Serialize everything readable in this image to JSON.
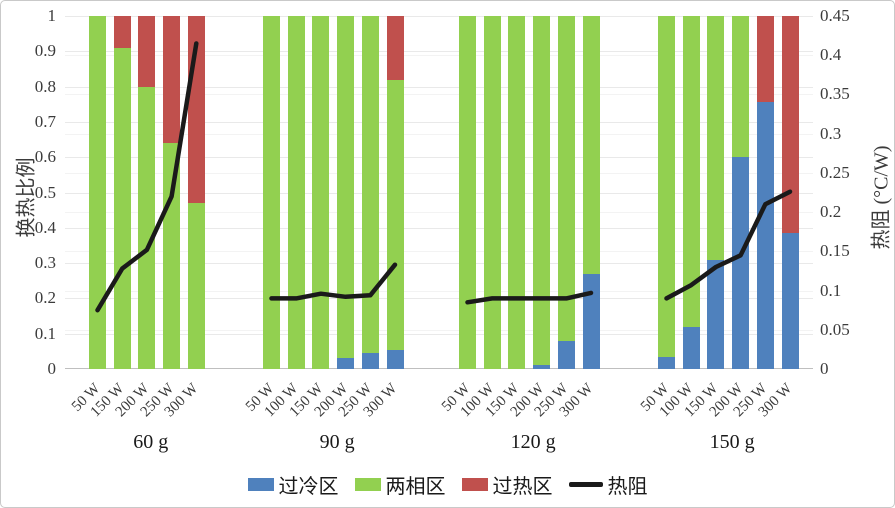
{
  "chart_data": {
    "type": "bar",
    "subtype": "stacked-bar-with-line",
    "title": "",
    "ylabel_left": "换热比例",
    "ylabel_right": "热阻 (°C/W)",
    "ylim_left": [
      0,
      1
    ],
    "ylim_right": [
      0,
      0.45
    ],
    "yticks_left": [
      "0",
      "0.1",
      "0.2",
      "0.3",
      "0.4",
      "0.5",
      "0.6",
      "0.7",
      "0.8",
      "0.9",
      "1"
    ],
    "yticks_right": [
      "0",
      "0.05",
      "0.1",
      "0.15",
      "0.2",
      "0.25",
      "0.3",
      "0.35",
      "0.4",
      "0.45"
    ],
    "grid": true,
    "legend_position": "bottom",
    "colors": {
      "subcooled": "#4f81bd",
      "two_phase": "#92d050",
      "superheat": "#c0504d",
      "line": "#1a1a1a"
    },
    "legend": [
      {
        "label": "过冷区",
        "color": "#4f81bd",
        "marker": "box"
      },
      {
        "label": "两相区",
        "color": "#92d050",
        "marker": "box"
      },
      {
        "label": "过热区",
        "color": "#c0504d",
        "marker": "box"
      },
      {
        "label": "热阻",
        "color": "#1a1a1a",
        "marker": "line"
      }
    ],
    "stack_order_bottom_to_top": [
      "subcooled",
      "two_phase",
      "superheat"
    ],
    "groups": [
      {
        "label": "60 g",
        "categories": [
          "50 W",
          "150 W",
          "200 W",
          "250 W",
          "300 W"
        ],
        "bars": [
          {
            "subcooled": 0,
            "two_phase": 1.0,
            "superheat": 0
          },
          {
            "subcooled": 0,
            "two_phase": 0.91,
            "superheat": 0.09
          },
          {
            "subcooled": 0,
            "two_phase": 0.8,
            "superheat": 0.2
          },
          {
            "subcooled": 0,
            "two_phase": 0.64,
            "superheat": 0.36
          },
          {
            "subcooled": 0,
            "two_phase": 0.47,
            "superheat": 0.53
          }
        ],
        "thermal_resistance": [
          0.075,
          0.128,
          0.152,
          0.22,
          0.415
        ]
      },
      {
        "label": "90 g",
        "categories": [
          "50 W",
          "100 W",
          "150 W",
          "200 W",
          "250 W",
          "300 W"
        ],
        "bars": [
          {
            "subcooled": 0,
            "two_phase": 1.0,
            "superheat": 0
          },
          {
            "subcooled": 0,
            "two_phase": 1.0,
            "superheat": 0
          },
          {
            "subcooled": 0,
            "two_phase": 1.0,
            "superheat": 0
          },
          {
            "subcooled": 0.03,
            "two_phase": 0.97,
            "superheat": 0
          },
          {
            "subcooled": 0.045,
            "two_phase": 0.955,
            "superheat": 0
          },
          {
            "subcooled": 0.055,
            "two_phase": 0.765,
            "superheat": 0.18
          }
        ],
        "thermal_resistance": [
          0.09,
          0.09,
          0.096,
          0.092,
          0.094,
          0.133
        ]
      },
      {
        "label": "120 g",
        "categories": [
          "50 W",
          "100 W",
          "150 W",
          "200 W",
          "250 W",
          "300 W"
        ],
        "bars": [
          {
            "subcooled": 0,
            "two_phase": 1.0,
            "superheat": 0
          },
          {
            "subcooled": 0,
            "two_phase": 1.0,
            "superheat": 0
          },
          {
            "subcooled": 0,
            "two_phase": 1.0,
            "superheat": 0
          },
          {
            "subcooled": 0.01,
            "two_phase": 0.99,
            "superheat": 0
          },
          {
            "subcooled": 0.08,
            "two_phase": 0.92,
            "superheat": 0
          },
          {
            "subcooled": 0.27,
            "two_phase": 0.73,
            "superheat": 0
          }
        ],
        "thermal_resistance": [
          0.085,
          0.09,
          0.09,
          0.09,
          0.09,
          0.097
        ]
      },
      {
        "label": "150 g",
        "categories": [
          "50 W",
          "100 W",
          "150 W",
          "200 W",
          "250 W",
          "300 W"
        ],
        "bars": [
          {
            "subcooled": 0.035,
            "two_phase": 0.965,
            "superheat": 0
          },
          {
            "subcooled": 0.12,
            "two_phase": 0.88,
            "superheat": 0
          },
          {
            "subcooled": 0.31,
            "two_phase": 0.69,
            "superheat": 0
          },
          {
            "subcooled": 0.6,
            "two_phase": 0.4,
            "superheat": 0
          },
          {
            "subcooled": 0.755,
            "two_phase": 0,
            "superheat": 0.245
          },
          {
            "subcooled": 0.385,
            "two_phase": 0,
            "superheat": 0.615
          }
        ],
        "thermal_resistance": [
          0.09,
          0.107,
          0.13,
          0.145,
          0.21,
          0.226
        ]
      }
    ]
  }
}
